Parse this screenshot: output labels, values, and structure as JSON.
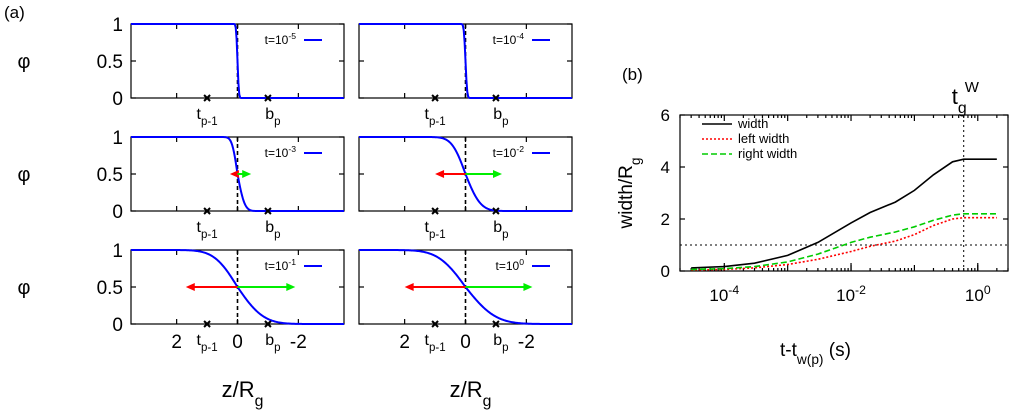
{
  "chart_data": [
    {
      "type": "line",
      "panel_label": "(a)",
      "ylabel": "φ",
      "xlabel": "z/R_g",
      "x_reversed": true,
      "xlim": [
        3.5,
        -3.5
      ],
      "ylim": [
        0,
        1
      ],
      "yticks": [
        0,
        0.5,
        1
      ],
      "ytick_labels": [
        "0",
        "0.5",
        "1"
      ],
      "xticks": [
        2,
        0,
        -2
      ],
      "xtick_labels": [
        "2",
        "0",
        "-2"
      ],
      "marker_labels": {
        "left": "t",
        "left_sub": "p-1",
        "right": "b",
        "right_sub": "p"
      },
      "marker_x": {
        "left": 1.0,
        "right": -1.0
      },
      "series_color": "#0000ff",
      "arrow_colors": {
        "left": "#ff0000",
        "right": "#00ee00"
      },
      "subplots": [
        {
          "legend": "t=10",
          "legend_exp": "-5",
          "width_left": 0.05,
          "width_right": 0.05,
          "arrow_left": 0.0,
          "arrow_right": 0.0
        },
        {
          "legend": "t=10",
          "legend_exp": "-4",
          "width_left": 0.06,
          "width_right": 0.06,
          "arrow_left": 0.0,
          "arrow_right": 0.0
        },
        {
          "legend": "t=10",
          "legend_exp": "-3",
          "width_left": 0.2,
          "width_right": 0.26,
          "arrow_left": 0.25,
          "arrow_right": 0.45
        },
        {
          "legend": "t=10",
          "legend_exp": "-2",
          "width_left": 0.5,
          "width_right": 0.55,
          "arrow_left": 1.0,
          "arrow_right": 1.2
        },
        {
          "legend": "t=10",
          "legend_exp": "-1",
          "width_left": 0.85,
          "width_right": 0.95,
          "arrow_left": 1.7,
          "arrow_right": 1.9
        },
        {
          "legend": "t=10",
          "legend_exp": "0",
          "width_left": 1.0,
          "width_right": 1.1,
          "arrow_left": 2.0,
          "arrow_right": 2.2
        }
      ]
    },
    {
      "type": "line",
      "panel_label": "(b)",
      "xlabel": "t-t",
      "xlabel_sub": "w(p)",
      "xlabel_unit": "(s)",
      "ylabel": "width/R",
      "ylabel_sub": "g",
      "x_scale": "log",
      "xlim": [
        2e-05,
        3
      ],
      "ylim": [
        0,
        6
      ],
      "yticks": [
        0,
        2,
        4,
        6
      ],
      "ytick_labels": [
        "0",
        "2",
        "4",
        "6"
      ],
      "xticks": [
        0.0001,
        0.01,
        1
      ],
      "xtick_base": "10",
      "xtick_exps": [
        "-4",
        "-2",
        "0"
      ],
      "hline": 1,
      "vline": 0.6,
      "vline_label": "t",
      "vline_label_sub": "g",
      "vline_label_sup": "W",
      "legend_position": "top-left",
      "series": [
        {
          "name": "width",
          "color": "#000000",
          "dash": "solid",
          "x": [
            3e-05,
            0.0001,
            0.0003,
            0.001,
            0.003,
            0.01,
            0.02,
            0.05,
            0.1,
            0.2,
            0.4,
            0.6,
            2
          ],
          "y": [
            0.12,
            0.17,
            0.3,
            0.6,
            1.1,
            1.85,
            2.25,
            2.65,
            3.1,
            3.7,
            4.2,
            4.3,
            4.3
          ]
        },
        {
          "name": "left width",
          "color": "#ff0000",
          "dash": "dotted",
          "x": [
            3e-05,
            0.0001,
            0.0003,
            0.001,
            0.003,
            0.01,
            0.02,
            0.05,
            0.1,
            0.2,
            0.4,
            0.6,
            2
          ],
          "y": [
            0.04,
            0.06,
            0.12,
            0.25,
            0.45,
            0.75,
            0.95,
            1.15,
            1.4,
            1.75,
            2.0,
            2.05,
            2.05
          ]
        },
        {
          "name": "right width",
          "color": "#00cc00",
          "dash": "dashed",
          "x": [
            3e-05,
            0.0001,
            0.0003,
            0.001,
            0.003,
            0.01,
            0.02,
            0.05,
            0.1,
            0.2,
            0.4,
            0.6,
            2
          ],
          "y": [
            0.06,
            0.09,
            0.17,
            0.35,
            0.65,
            1.1,
            1.3,
            1.5,
            1.7,
            1.95,
            2.15,
            2.2,
            2.2
          ]
        }
      ]
    }
  ]
}
